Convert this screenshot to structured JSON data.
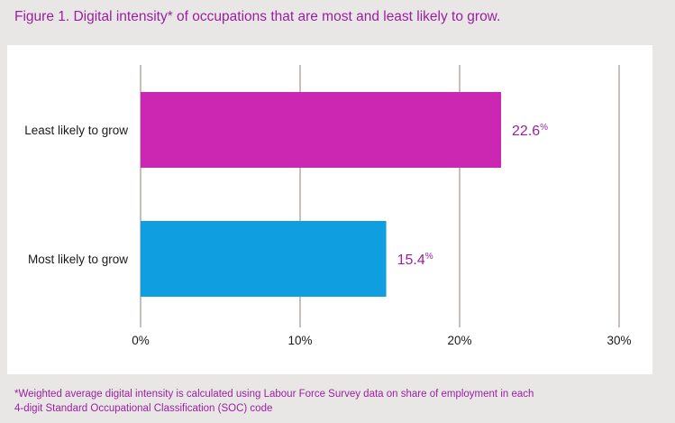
{
  "title": "Figure 1. Digital intensity* of occupations that are most and least likely to grow.",
  "footnote": {
    "line1": "*Weighted average digital intensity is calculated using Labour Force Survey data on share of employment in each",
    "line2": "4-digit Standard Occupational Classification (SOC) code"
  },
  "colors": {
    "background": "#e9e7e5",
    "panel": "#ffffff",
    "accent_text": "#9b1fa2",
    "gridline": "#b3aca6"
  },
  "chart_data": {
    "type": "bar",
    "orientation": "horizontal",
    "categories": [
      "Least likely to grow",
      "Most likely to grow"
    ],
    "values": [
      22.6,
      15.4
    ],
    "value_labels": [
      "22.6",
      "15.4"
    ],
    "value_unit": "%",
    "bar_colors": [
      "#cc27b3",
      "#0f9ee0"
    ],
    "xlim": [
      0,
      30
    ],
    "xticks": [
      0,
      10,
      20,
      30
    ],
    "xtick_labels": [
      "0%",
      "10%",
      "20%",
      "30%"
    ],
    "grid": "vertical",
    "legend": "none"
  }
}
